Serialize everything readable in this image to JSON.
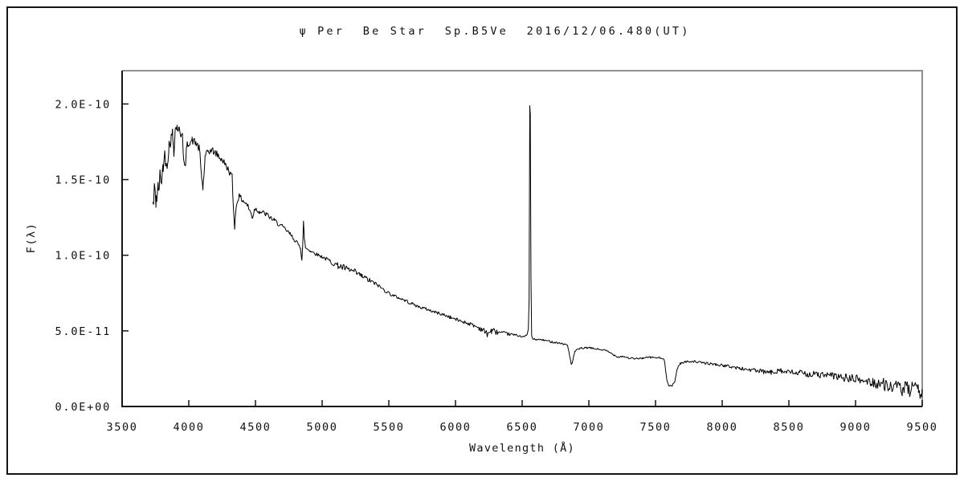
{
  "title": "ψ Per  Be Star  Sp.B5Ve  2016/12/06.480(UT)",
  "chart_data": {
    "type": "line",
    "title": "ψ Per  Be Star  Sp.B5Ve  2016/12/06.480(UT)",
    "xlabel": "Wavelength (Å)",
    "ylabel": "F(λ)",
    "xlim": [
      3500,
      9500
    ],
    "ylim_e11": [
      0,
      22.2
    ],
    "flux_unit": 1e-11,
    "grid": false,
    "legend": null,
    "x_ticks": [
      3500,
      4000,
      4500,
      5000,
      5500,
      6000,
      6500,
      7000,
      7500,
      8000,
      8500,
      9000,
      9500
    ],
    "x_tick_labels": [
      "3500",
      "4000",
      "4500",
      "5000",
      "5500",
      "6000",
      "6500",
      "7000",
      "7500",
      "8000",
      "8500",
      "9000",
      "9500"
    ],
    "y_ticks": [
      {
        "v": 0,
        "label": "0.0E+00"
      },
      {
        "v": 5,
        "label": "5.0E-11"
      },
      {
        "v": 10,
        "label": "1.0E-10"
      },
      {
        "v": 15,
        "label": "1.5E-10"
      },
      {
        "v": 20,
        "label": "2.0E-10"
      }
    ],
    "colors": {
      "line": "#000000",
      "axis": "#151515",
      "frame_gray": "#8f8f8f",
      "text": "#111111",
      "background": "#ffffff"
    },
    "series": [
      {
        "name": "psi-per-spectrum",
        "sample_step_angstrom": 6,
        "noise_seed": 42,
        "min_flux_e11": 0.05,
        "points_e11": [
          [
            3730,
            13.2
          ],
          [
            3742,
            13.8
          ],
          [
            3755,
            13.9
          ],
          [
            3770,
            14.2
          ],
          [
            3785,
            15.2
          ],
          [
            3798,
            15.0
          ],
          [
            3806,
            15.9
          ],
          [
            3820,
            16.6
          ],
          [
            3832,
            16.0
          ],
          [
            3840,
            16.2
          ],
          [
            3852,
            17.3
          ],
          [
            3865,
            17.6
          ],
          [
            3878,
            18.1
          ],
          [
            3888,
            16.9
          ],
          [
            3898,
            18.3
          ],
          [
            3912,
            18.5
          ],
          [
            3925,
            18.3
          ],
          [
            3940,
            18.0
          ],
          [
            3952,
            18.2
          ],
          [
            3962,
            16.2
          ],
          [
            3972,
            15.7
          ],
          [
            3985,
            17.2
          ],
          [
            4000,
            17.5
          ],
          [
            4025,
            17.6
          ],
          [
            4055,
            17.4
          ],
          [
            4080,
            17.0
          ],
          [
            4095,
            15.3
          ],
          [
            4106,
            14.4
          ],
          [
            4122,
            16.4
          ],
          [
            4145,
            16.9
          ],
          [
            4180,
            16.9
          ],
          [
            4220,
            16.6
          ],
          [
            4260,
            16.2
          ],
          [
            4300,
            15.6
          ],
          [
            4325,
            15.2
          ],
          [
            4334,
            13.2
          ],
          [
            4344,
            11.9
          ],
          [
            4358,
            13.4
          ],
          [
            4375,
            13.9
          ],
          [
            4410,
            13.6
          ],
          [
            4440,
            13.3
          ],
          [
            4465,
            12.8
          ],
          [
            4478,
            12.5
          ],
          [
            4495,
            13.1
          ],
          [
            4530,
            12.9
          ],
          [
            4580,
            12.7
          ],
          [
            4640,
            12.3
          ],
          [
            4700,
            11.9
          ],
          [
            4760,
            11.4
          ],
          [
            4805,
            10.9
          ],
          [
            4838,
            10.5
          ],
          [
            4848,
            9.7
          ],
          [
            4855,
            10.8
          ],
          [
            4860,
            12.2
          ],
          [
            4866,
            11.2
          ],
          [
            4875,
            10.5
          ],
          [
            4910,
            10.3
          ],
          [
            4950,
            10.1
          ],
          [
            5000,
            9.9
          ],
          [
            5060,
            9.6
          ],
          [
            5120,
            9.3
          ],
          [
            5180,
            9.1
          ],
          [
            5240,
            8.9
          ],
          [
            5300,
            8.6
          ],
          [
            5360,
            8.3
          ],
          [
            5420,
            8.0
          ],
          [
            5480,
            7.6
          ],
          [
            5540,
            7.3
          ],
          [
            5600,
            7.1
          ],
          [
            5660,
            6.85
          ],
          [
            5720,
            6.6
          ],
          [
            5780,
            6.45
          ],
          [
            5840,
            6.25
          ],
          [
            5900,
            6.1
          ],
          [
            5960,
            5.9
          ],
          [
            6020,
            5.7
          ],
          [
            6080,
            5.55
          ],
          [
            6140,
            5.35
          ],
          [
            6200,
            5.1
          ],
          [
            6235,
            4.8
          ],
          [
            6270,
            5.0
          ],
          [
            6320,
            4.9
          ],
          [
            6390,
            4.8
          ],
          [
            6460,
            4.7
          ],
          [
            6520,
            4.62
          ],
          [
            6538,
            4.75
          ],
          [
            6546,
            5.1
          ],
          [
            6552,
            7.0
          ],
          [
            6557,
            19.9
          ],
          [
            6561,
            19.3
          ],
          [
            6566,
            8.5
          ],
          [
            6571,
            4.7
          ],
          [
            6580,
            4.45
          ],
          [
            6650,
            4.4
          ],
          [
            6720,
            4.28
          ],
          [
            6790,
            4.18
          ],
          [
            6840,
            4.05
          ],
          [
            6858,
            3.3
          ],
          [
            6868,
            2.75
          ],
          [
            6880,
            3.0
          ],
          [
            6895,
            3.65
          ],
          [
            6940,
            3.85
          ],
          [
            7000,
            3.88
          ],
          [
            7060,
            3.8
          ],
          [
            7120,
            3.72
          ],
          [
            7160,
            3.55
          ],
          [
            7190,
            3.4
          ],
          [
            7220,
            3.28
          ],
          [
            7255,
            3.32
          ],
          [
            7300,
            3.2
          ],
          [
            7350,
            3.15
          ],
          [
            7400,
            3.2
          ],
          [
            7460,
            3.25
          ],
          [
            7530,
            3.22
          ],
          [
            7565,
            3.1
          ],
          [
            7585,
            1.8
          ],
          [
            7600,
            1.4
          ],
          [
            7625,
            1.35
          ],
          [
            7645,
            1.65
          ],
          [
            7662,
            2.5
          ],
          [
            7685,
            2.85
          ],
          [
            7725,
            2.95
          ],
          [
            7775,
            3.0
          ],
          [
            7830,
            2.92
          ],
          [
            7890,
            2.85
          ],
          [
            7950,
            2.78
          ],
          [
            8010,
            2.7
          ],
          [
            8070,
            2.62
          ],
          [
            8130,
            2.52
          ],
          [
            8190,
            2.45
          ],
          [
            8250,
            2.38
          ],
          [
            8310,
            2.28
          ],
          [
            8370,
            2.25
          ],
          [
            8405,
            2.3
          ],
          [
            8428,
            2.55
          ],
          [
            8450,
            2.3
          ],
          [
            8510,
            2.25
          ],
          [
            8580,
            2.2
          ],
          [
            8650,
            2.15
          ],
          [
            8720,
            2.1
          ],
          [
            8790,
            2.05
          ],
          [
            8860,
            1.98
          ],
          [
            8930,
            1.88
          ],
          [
            9000,
            1.8
          ],
          [
            9070,
            1.68
          ],
          [
            9140,
            1.58
          ],
          [
            9210,
            1.48
          ],
          [
            9280,
            1.3
          ],
          [
            9350,
            1.15
          ],
          [
            9420,
            1.1
          ],
          [
            9470,
            1.05
          ],
          [
            9500,
            0.9
          ]
        ],
        "noise_profile_e11": [
          [
            3730,
            1.55
          ],
          [
            3772,
            0.85
          ],
          [
            3800,
            0.5
          ],
          [
            3900,
            0.4
          ],
          [
            3955,
            0.3
          ],
          [
            4100,
            0.28
          ],
          [
            4350,
            0.22
          ],
          [
            4600,
            0.18
          ],
          [
            4840,
            0.12
          ],
          [
            5000,
            0.12
          ],
          [
            5150,
            0.24
          ],
          [
            5330,
            0.2
          ],
          [
            5430,
            0.12
          ],
          [
            5800,
            0.1
          ],
          [
            6150,
            0.14
          ],
          [
            6260,
            0.28
          ],
          [
            6340,
            0.12
          ],
          [
            6480,
            0.08
          ],
          [
            6545,
            0.05
          ],
          [
            6600,
            0.06
          ],
          [
            6700,
            0.07
          ],
          [
            7300,
            0.06
          ],
          [
            7700,
            0.07
          ],
          [
            8000,
            0.09
          ],
          [
            8200,
            0.15
          ],
          [
            8400,
            0.18
          ],
          [
            8600,
            0.22
          ],
          [
            8850,
            0.26
          ],
          [
            9050,
            0.33
          ],
          [
            9250,
            0.45
          ],
          [
            9400,
            0.55
          ],
          [
            9500,
            0.5
          ]
        ]
      }
    ]
  }
}
